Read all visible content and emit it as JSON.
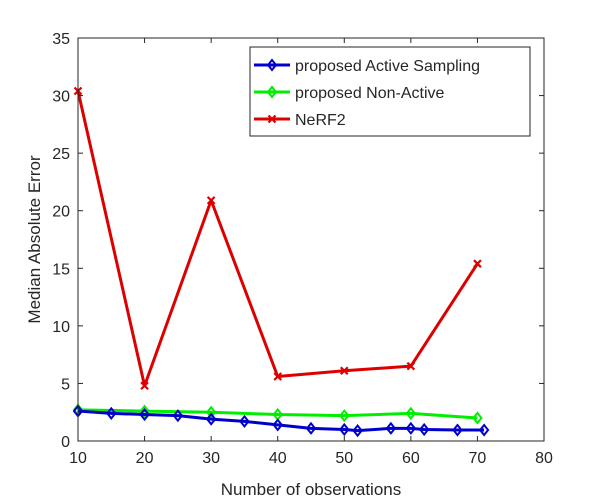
{
  "chart_data": {
    "type": "line",
    "title": "",
    "xlabel": "Number of observations",
    "ylabel": "Median Absolute Error",
    "xlim": [
      10,
      80
    ],
    "ylim": [
      0,
      35
    ],
    "xticks": [
      10,
      20,
      30,
      40,
      50,
      60,
      70,
      80
    ],
    "yticks": [
      0,
      5,
      10,
      15,
      20,
      25,
      30,
      35
    ],
    "grid": false,
    "legend_position": "top-right",
    "series": [
      {
        "name": "proposed Active Sampling",
        "color": "#0000cc",
        "marker": "diamond",
        "x": [
          10,
          15,
          20,
          25,
          30,
          35,
          40,
          45,
          50,
          52,
          57,
          60,
          62,
          67,
          71
        ],
        "y": [
          2.6,
          2.4,
          2.3,
          2.2,
          1.9,
          1.7,
          1.4,
          1.1,
          1.0,
          0.9,
          1.1,
          1.1,
          1.0,
          0.95,
          0.95
        ]
      },
      {
        "name": "proposed Non-Active",
        "color": "#00ee00",
        "marker": "diamond",
        "x": [
          10,
          20,
          30,
          40,
          50,
          60,
          70
        ],
        "y": [
          2.7,
          2.6,
          2.5,
          2.3,
          2.2,
          2.4,
          2.0
        ]
      },
      {
        "name": "NeRF2",
        "color": "#dd0000",
        "marker": "x",
        "x": [
          10,
          20,
          30,
          40,
          50,
          60,
          70
        ],
        "y": [
          30.4,
          4.8,
          20.9,
          5.6,
          6.1,
          6.5,
          15.4
        ]
      }
    ]
  }
}
